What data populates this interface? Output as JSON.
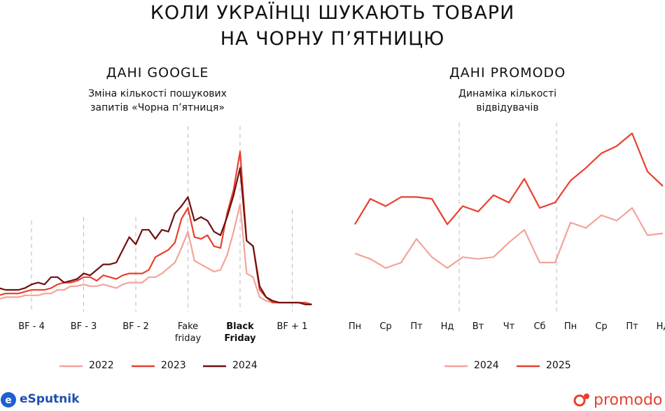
{
  "title": [
    "КОЛИ УКРАЇНЦІ ШУКАЮТЬ ТОВАРИ",
    "НА ЧОРНУ П’ЯТНИЦЮ"
  ],
  "chart_data": [
    {
      "type": "line",
      "title": "ДАНІ GOOGLE",
      "subtitle": [
        "Зміна кількості пошукових",
        "запитів «Чорна п’ятниця»"
      ],
      "categories": [
        null,
        null,
        null,
        null,
        null,
        "BF - 4",
        null,
        null,
        null,
        null,
        null,
        null,
        null,
        "BF - 3",
        null,
        null,
        null,
        null,
        null,
        null,
        null,
        "BF - 2",
        null,
        null,
        null,
        null,
        null,
        null,
        null,
        "Fake friday",
        null,
        null,
        null,
        null,
        null,
        null,
        null,
        "Black Friday",
        null,
        null,
        null,
        null,
        null,
        null,
        null,
        "BF + 1",
        null,
        null,
        null
      ],
      "highlight_index": 37,
      "ylim": [
        0,
        100
      ],
      "series": [
        {
          "name": "2022",
          "color": "#f4a39a",
          "values": [
            5,
            6,
            6,
            6,
            7,
            7,
            7,
            8,
            8,
            10,
            10,
            12,
            12,
            13,
            12,
            12,
            13,
            12,
            11,
            13,
            14,
            14,
            14,
            17,
            17,
            19,
            22,
            25,
            33,
            42,
            26,
            24,
            22,
            20,
            21,
            29,
            42,
            57,
            19,
            17,
            6,
            4,
            3,
            3,
            3,
            3,
            3,
            2,
            2
          ]
        },
        {
          "name": "2023",
          "color": "#e8402e",
          "values": [
            7,
            8,
            8,
            8,
            9,
            10,
            10,
            10,
            11,
            13,
            14,
            14,
            15,
            17,
            17,
            15,
            18,
            17,
            16,
            18,
            19,
            19,
            19,
            21,
            28,
            30,
            32,
            36,
            49,
            55,
            39,
            38,
            40,
            34,
            33,
            52,
            65,
            86,
            37,
            34,
            10,
            6,
            3,
            3,
            3,
            3,
            3,
            3,
            2
          ]
        },
        {
          "name": "2024",
          "color": "#6e1010",
          "values": [
            11,
            10,
            10,
            10,
            11,
            13,
            14,
            13,
            17,
            17,
            14,
            15,
            16,
            19,
            18,
            21,
            24,
            24,
            25,
            32,
            39,
            35,
            43,
            43,
            38,
            43,
            42,
            52,
            56,
            61,
            48,
            50,
            48,
            42,
            40,
            50,
            62,
            77,
            37,
            34,
            12,
            6,
            4,
            3,
            3,
            3,
            3,
            2,
            2
          ]
        }
      ]
    },
    {
      "type": "line",
      "title": "ДАНІ PROMODO",
      "subtitle": [
        "Динаміка кількості",
        "відвідувачів"
      ],
      "categories": [
        "Пн",
        null,
        "Ср",
        null,
        "Пт",
        null,
        "Нд",
        null,
        "Вт",
        null,
        "Чт",
        null,
        "Сб",
        null,
        "Пн",
        null,
        "Ср",
        null,
        "Пт",
        null,
        "Нд"
      ],
      "ylim": [
        0,
        100
      ],
      "series": [
        {
          "name": "2024",
          "color": "#f4a39a",
          "values": [
            30,
            27,
            22,
            25,
            38,
            28,
            22,
            28,
            27,
            28,
            36,
            43,
            25,
            25,
            47,
            44,
            51,
            48,
            55,
            40,
            41
          ]
        },
        {
          "name": "2025",
          "color": "#e8402e",
          "values": [
            46,
            60,
            56,
            61,
            61,
            60,
            46,
            56,
            53,
            62,
            58,
            71,
            55,
            58,
            70,
            77,
            85,
            89,
            96,
            75,
            67
          ]
        }
      ]
    }
  ],
  "logos": [
    "eSputnik",
    "promodo"
  ]
}
